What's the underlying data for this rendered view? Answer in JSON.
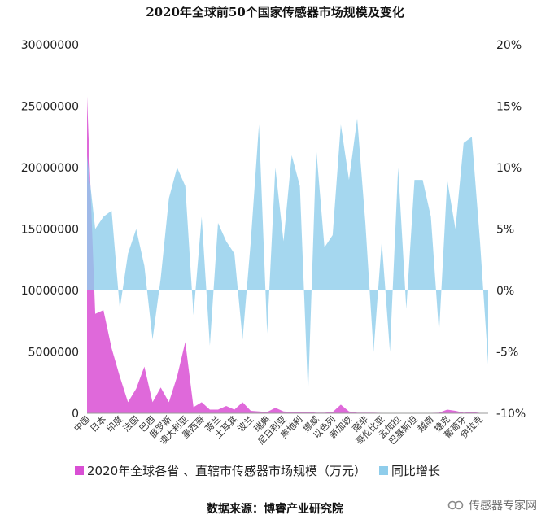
{
  "chart_data": {
    "type": "area",
    "title": "2020年全球前50个国家传感器市场规模及变化",
    "categories": [
      "中国",
      "",
      "日本",
      "",
      "印度",
      "",
      "法国",
      "",
      "巴西",
      "",
      "俄罗斯",
      "",
      "澳大利亚",
      "",
      "墨西哥",
      "",
      "荷兰",
      "",
      "土耳其",
      "",
      "波兰",
      "",
      "瑞典",
      "",
      "尼日利亚",
      "",
      "奥地利",
      "",
      "挪威",
      "",
      "以色列",
      "",
      "新加坡",
      "",
      "南非",
      "",
      "哥伦比亚",
      "",
      "孟加拉",
      "",
      "巴基斯坦",
      "",
      "越南",
      "",
      "捷克",
      "",
      "葡萄牙",
      "",
      "伊拉克",
      ""
    ],
    "left_axis": {
      "min": 0,
      "max": 30000000,
      "ticks": [
        "0",
        "5000000",
        "10000000",
        "15000000",
        "20000000",
        "25000000",
        "30000000"
      ]
    },
    "right_axis": {
      "min": -10,
      "max": 20,
      "ticks": [
        "-10%",
        "-5%",
        "0%",
        "5%",
        "10%",
        "15%",
        "20%"
      ]
    },
    "series": [
      {
        "name": "2020年全球各省 、直辖市传感器市场规模（万元）",
        "axis": "left",
        "color": "#d94fd4",
        "values": [
          25800000,
          8100000,
          8400000,
          5300000,
          3000000,
          900000,
          2000000,
          3800000,
          900000,
          2100000,
          900000,
          3000000,
          5800000,
          500000,
          900000,
          300000,
          300000,
          600000,
          300000,
          900000,
          200000,
          150000,
          100000,
          450000,
          150000,
          100000,
          100000,
          100000,
          50000,
          50000,
          100000,
          700000,
          150000,
          50000,
          50000,
          50000,
          30000,
          30000,
          30000,
          30000,
          30000,
          30000,
          30000,
          50000,
          300000,
          200000,
          50000,
          100000,
          30000,
          30000
        ]
      },
      {
        "name": "同比增长",
        "axis": "right",
        "color": "#8fcdeb",
        "values": [
          11,
          5,
          6,
          6.5,
          -1.5,
          3,
          5,
          2,
          -4,
          1,
          7.5,
          10,
          8.5,
          -2,
          6,
          -4.5,
          5.5,
          4,
          3,
          -4,
          4,
          13.5,
          -3.5,
          10,
          4,
          11,
          8.5,
          -8.5,
          11.5,
          3.5,
          4.5,
          13.5,
          9,
          14,
          5.5,
          -5,
          4,
          -5,
          10,
          -1.5,
          9,
          9,
          6,
          -3.5,
          9,
          5,
          12,
          12.5,
          4,
          -6
        ]
      }
    ]
  },
  "legend": {
    "items": [
      {
        "label": "2020年全球各省 、直辖市传感器市场规模（万元）",
        "color": "#d94fd4"
      },
      {
        "label": "同比增长",
        "color": "#8fcdeb"
      }
    ]
  },
  "source": "数据来源：博睿产业研究院",
  "watermark": {
    "text": "传感器专家网",
    "icon": "wechat-official-account-icon"
  }
}
